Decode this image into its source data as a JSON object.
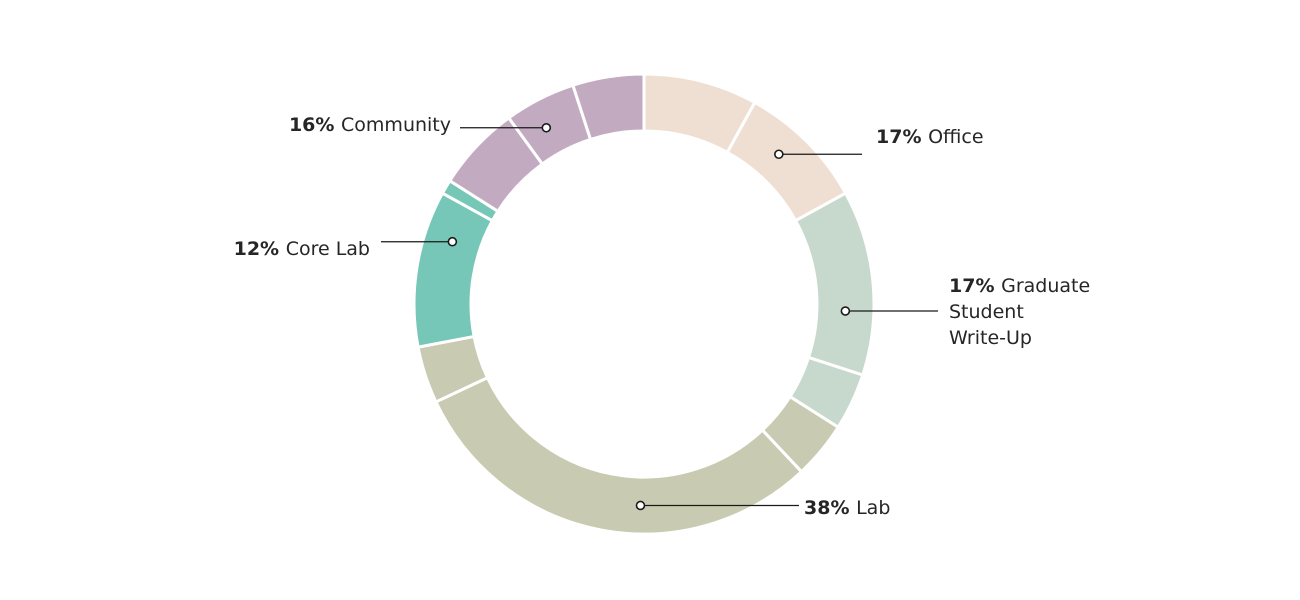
{
  "chart_data": {
    "type": "pie",
    "variant": "donut",
    "categories": [
      "Office",
      "Graduate Student Write-Up",
      "Lab",
      "Core Lab",
      "Community"
    ],
    "values": [
      17,
      17,
      38,
      12,
      16
    ],
    "labels": [
      {
        "percent": "17%",
        "lines": [
          "Office"
        ]
      },
      {
        "percent": "17%",
        "lines": [
          "Graduate",
          "Student",
          "Write-Up"
        ]
      },
      {
        "percent": "38%",
        "lines": [
          "Lab"
        ]
      },
      {
        "percent": "12%",
        "lines": [
          "Core Lab"
        ]
      },
      {
        "percent": "16%",
        "lines": [
          "Community"
        ]
      }
    ],
    "colors": [
      "#efdfd2",
      "#c7d8cd",
      "#c8cbb1",
      "#76c7b7",
      "#c2abc1"
    ],
    "sub_segments": [
      [
        8,
        9
      ],
      [
        13,
        4
      ],
      [
        4,
        30,
        4
      ],
      [
        11,
        1
      ],
      [
        6,
        5,
        5
      ]
    ],
    "separator_color": "#ffffff",
    "marker_color": "#1a1a1a",
    "start_angle_deg": 0,
    "direction": "clockwise",
    "title": "",
    "legend": "none"
  }
}
